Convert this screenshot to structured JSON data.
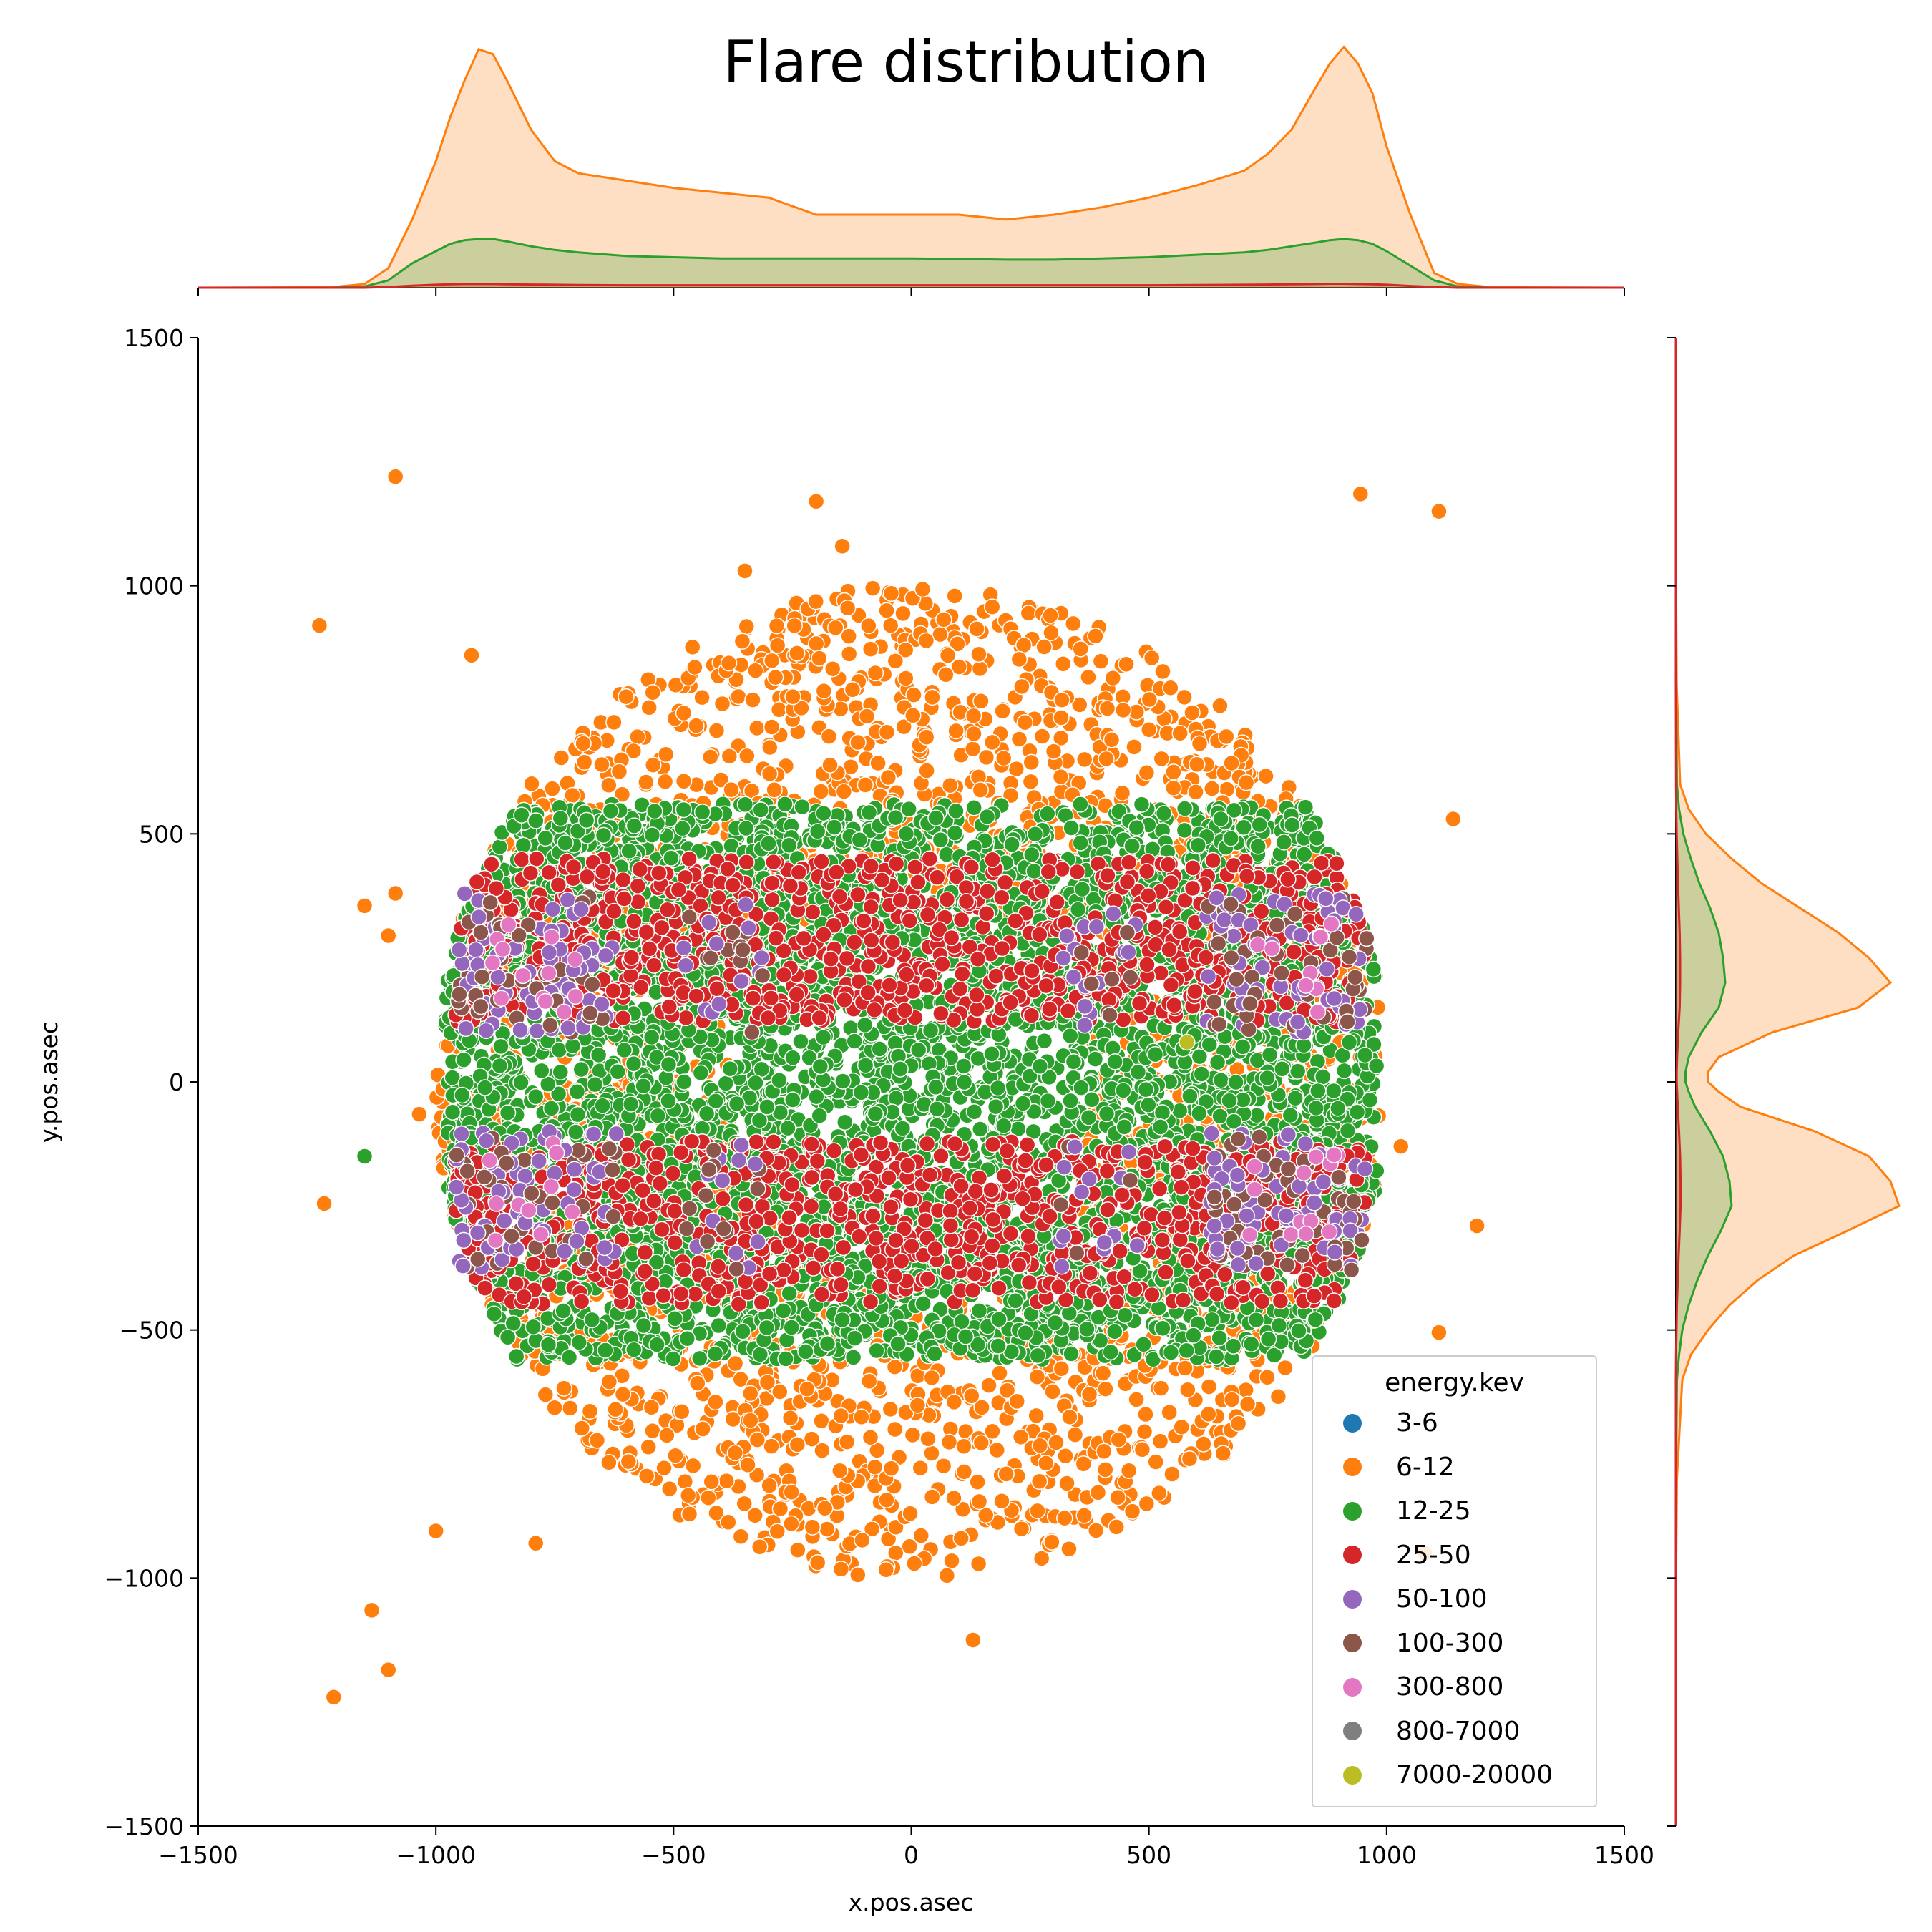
{
  "chart_data": {
    "type": "scatter",
    "title": "Flare distribution",
    "xlabel": "x.pos.asec",
    "ylabel": "y.pos.asec",
    "xlim": [
      -1500,
      1500
    ],
    "ylim": [
      -1500,
      1500
    ],
    "x_ticks": [
      "−1500",
      "−1000",
      "−500",
      "0",
      "500",
      "1000",
      "1500"
    ],
    "y_ticks": [
      "1500",
      "1000",
      "500",
      "0",
      "−500",
      "−1000",
      "−1500"
    ],
    "legend": {
      "title": "energy.kev",
      "placement": "lower-right",
      "entries": [
        {
          "label": "3-6",
          "color": "#1f77b4"
        },
        {
          "label": "6-12",
          "color": "#ff7f0e"
        },
        {
          "label": "12-25",
          "color": "#2ca02c"
        },
        {
          "label": "25-50",
          "color": "#d62728"
        },
        {
          "label": "50-100",
          "color": "#9467bd"
        },
        {
          "label": "100-300",
          "color": "#8c564b"
        },
        {
          "label": "300-800",
          "color": "#e377c2"
        },
        {
          "label": "800-7000",
          "color": "#7f7f7f"
        },
        {
          "label": "7000-20000",
          "color": "#bcbd22"
        }
      ]
    },
    "outlier_points": [
      {
        "x": -1085,
        "y": 1220,
        "series": "6-12"
      },
      {
        "x": -1245,
        "y": 920,
        "series": "6-12"
      },
      {
        "x": -925,
        "y": 860,
        "series": "6-12"
      },
      {
        "x": 945,
        "y": 1185,
        "series": "6-12"
      },
      {
        "x": 1110,
        "y": 1150,
        "series": "6-12"
      },
      {
        "x": -200,
        "y": 1170,
        "series": "6-12"
      },
      {
        "x": -145,
        "y": 1080,
        "series": "6-12"
      },
      {
        "x": -350,
        "y": 1030,
        "series": "6-12"
      },
      {
        "x": -1150,
        "y": 355,
        "series": "6-12"
      },
      {
        "x": -1100,
        "y": 295,
        "series": "6-12"
      },
      {
        "x": -1085,
        "y": 380,
        "series": "6-12"
      },
      {
        "x": 1140,
        "y": 530,
        "series": "6-12"
      },
      {
        "x": -1235,
        "y": -245,
        "series": "6-12"
      },
      {
        "x": -1150,
        "y": -150,
        "series": "12-25"
      },
      {
        "x": 1190,
        "y": -290,
        "series": "6-12"
      },
      {
        "x": 1110,
        "y": -505,
        "series": "6-12"
      },
      {
        "x": -1000,
        "y": -905,
        "series": "6-12"
      },
      {
        "x": -790,
        "y": -930,
        "series": "6-12"
      },
      {
        "x": -1135,
        "y": -1065,
        "series": "6-12"
      },
      {
        "x": -1100,
        "y": -1185,
        "series": "6-12"
      },
      {
        "x": -1215,
        "y": -1240,
        "series": "6-12"
      },
      {
        "x": 130,
        "y": -1125,
        "series": "6-12"
      },
      {
        "x": 1080,
        "y": -950,
        "series": "6-12"
      },
      {
        "x": -1035,
        "y": -65,
        "series": "6-12"
      },
      {
        "x": 1030,
        "y": -130,
        "series": "6-12"
      }
    ],
    "marginal_x": {
      "x": [
        -1500,
        -1220,
        -1150,
        -1100,
        -1050,
        -1000,
        -970,
        -940,
        -910,
        -880,
        -850,
        -800,
        -750,
        -700,
        -600,
        -500,
        -400,
        -300,
        -200,
        -100,
        0,
        100,
        200,
        300,
        400,
        500,
        600,
        700,
        750,
        800,
        850,
        880,
        910,
        940,
        970,
        1000,
        1050,
        1100,
        1150,
        1220,
        1500
      ],
      "series": [
        {
          "name": "6-12",
          "color": "#ff7f0e",
          "values": [
            0,
            0.002,
            0.015,
            0.08,
            0.28,
            0.52,
            0.7,
            0.85,
            0.98,
            0.96,
            0.85,
            0.65,
            0.52,
            0.47,
            0.44,
            0.41,
            0.39,
            0.37,
            0.3,
            0.3,
            0.3,
            0.3,
            0.28,
            0.3,
            0.33,
            0.37,
            0.42,
            0.48,
            0.55,
            0.65,
            0.82,
            0.92,
            0.99,
            0.92,
            0.8,
            0.58,
            0.3,
            0.06,
            0.015,
            0.002,
            0
          ]
        },
        {
          "name": "12-25",
          "color": "#2ca02c",
          "values": [
            0,
            0,
            0.005,
            0.03,
            0.1,
            0.15,
            0.18,
            0.195,
            0.2,
            0.2,
            0.19,
            0.17,
            0.155,
            0.145,
            0.13,
            0.125,
            0.12,
            0.12,
            0.12,
            0.12,
            0.12,
            0.118,
            0.115,
            0.115,
            0.12,
            0.125,
            0.135,
            0.145,
            0.155,
            0.17,
            0.185,
            0.195,
            0.2,
            0.195,
            0.18,
            0.15,
            0.09,
            0.03,
            0.005,
            0,
            0
          ]
        },
        {
          "name": "25-50",
          "color": "#d62728",
          "values": [
            0,
            0,
            0,
            0.003,
            0.008,
            0.012,
            0.014,
            0.015,
            0.015,
            0.015,
            0.014,
            0.013,
            0.012,
            0.011,
            0.01,
            0.01,
            0.01,
            0.01,
            0.01,
            0.01,
            0.01,
            0.01,
            0.01,
            0.01,
            0.01,
            0.01,
            0.011,
            0.012,
            0.013,
            0.014,
            0.015,
            0.016,
            0.016,
            0.015,
            0.014,
            0.012,
            0.007,
            0.003,
            0,
            0,
            0
          ]
        }
      ]
    },
    "marginal_y": {
      "y": [
        1500,
        1200,
        1000,
        800,
        600,
        550,
        500,
        450,
        400,
        350,
        300,
        250,
        200,
        150,
        100,
        50,
        20,
        0,
        -20,
        -50,
        -100,
        -150,
        -200,
        -250,
        -300,
        -350,
        -400,
        -450,
        -500,
        -550,
        -600,
        -800,
        -1000,
        -1200,
        -1500
      ],
      "series": [
        {
          "name": "6-12",
          "color": "#ff7f0e",
          "values": [
            0,
            0,
            0.001,
            0.004,
            0.02,
            0.06,
            0.14,
            0.26,
            0.4,
            0.58,
            0.76,
            0.9,
            1.0,
            0.85,
            0.45,
            0.2,
            0.15,
            0.15,
            0.2,
            0.3,
            0.65,
            0.9,
            1.0,
            1.04,
            0.8,
            0.55,
            0.38,
            0.25,
            0.15,
            0.07,
            0.03,
            0.005,
            0.001,
            0,
            0
          ]
        },
        {
          "name": "12-25",
          "color": "#2ca02c",
          "values": [
            0,
            0,
            0,
            0.001,
            0.005,
            0.015,
            0.035,
            0.07,
            0.11,
            0.16,
            0.2,
            0.22,
            0.23,
            0.2,
            0.12,
            0.06,
            0.045,
            0.045,
            0.06,
            0.09,
            0.16,
            0.22,
            0.25,
            0.26,
            0.21,
            0.15,
            0.1,
            0.06,
            0.03,
            0.015,
            0.005,
            0.001,
            0,
            0,
            0
          ]
        },
        {
          "name": "25-50",
          "color": "#d62728",
          "values": [
            0,
            0,
            0,
            0,
            0.001,
            0.002,
            0.004,
            0.007,
            0.01,
            0.014,
            0.018,
            0.02,
            0.02,
            0.018,
            0.011,
            0.006,
            0.004,
            0.004,
            0.006,
            0.009,
            0.015,
            0.02,
            0.022,
            0.022,
            0.018,
            0.013,
            0.009,
            0.005,
            0.003,
            0.001,
            0,
            0,
            0,
            0,
            0
          ]
        }
      ]
    }
  }
}
